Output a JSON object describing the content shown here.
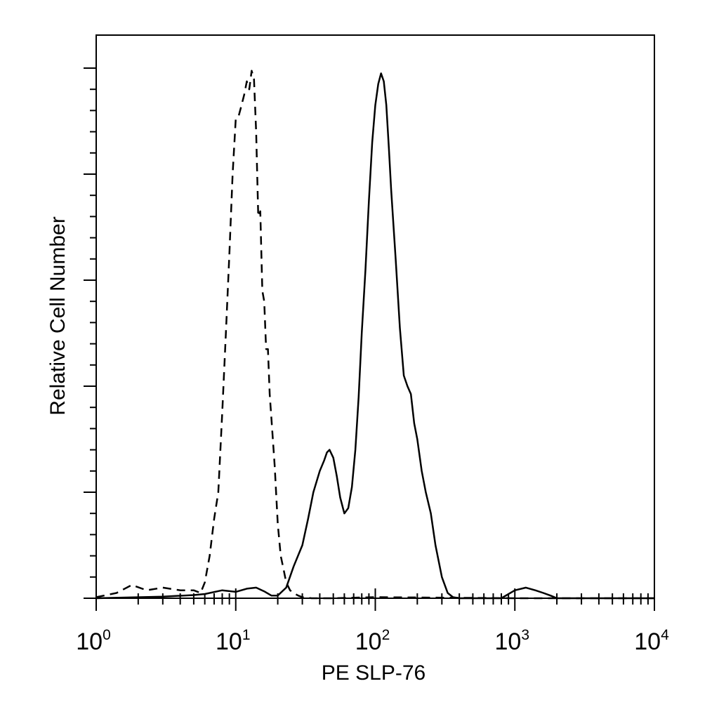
{
  "chart_data": {
    "type": "line",
    "title": "",
    "xlabel": "PE SLP-76",
    "ylabel": "Relative Cell Number",
    "x_scale": "log",
    "xlim": [
      1,
      10000
    ],
    "ylim": [
      0,
      100
    ],
    "x_tick_labels": [
      {
        "base": "10",
        "exp": "0"
      },
      {
        "base": "10",
        "exp": "1"
      },
      {
        "base": "10",
        "exp": "2"
      },
      {
        "base": "10",
        "exp": "3"
      },
      {
        "base": "10",
        "exp": "4"
      }
    ],
    "y_major_ticks": [
      0,
      20,
      40,
      60,
      80,
      100
    ],
    "grid": false,
    "legend": "none",
    "series": [
      {
        "style": "dashed",
        "color": "#000000",
        "x": [
          1.0,
          1.4,
          1.8,
          2.3,
          3.0,
          4.0,
          5.0,
          5.6,
          6.0,
          6.5,
          7.0,
          7.5,
          8.0,
          8.5,
          9.0,
          9.5,
          10.0,
          10.5,
          11.0,
          11.5,
          12.0,
          12.5,
          13.0,
          13.5,
          14.0,
          14.5,
          15.0,
          15.5,
          16.0,
          16.5,
          17.0,
          17.5,
          18.0,
          19.0,
          20.0,
          21.0,
          22.0,
          23.0,
          24.5,
          26.0,
          28.0,
          30.0,
          35.0,
          50.0,
          100.0,
          300.0,
          1000.0,
          10000.0
        ],
        "y": [
          0.2,
          1.0,
          2.5,
          1.5,
          2.0,
          1.5,
          1.5,
          1.0,
          3.0,
          8.0,
          15.0,
          20.0,
          35.0,
          50.0,
          65.0,
          80.0,
          90.5,
          91.0,
          93.0,
          95.0,
          97.5,
          96.0,
          99.5,
          98.0,
          88.0,
          72.0,
          73.0,
          58.0,
          56.0,
          47.0,
          47.0,
          38.5,
          34.0,
          25.0,
          14.0,
          8.0,
          5.5,
          3.0,
          1.5,
          1.0,
          0.5,
          0.2,
          0.0,
          0.0,
          0.2,
          0.1,
          0.0,
          0.0
        ]
      },
      {
        "style": "solid",
        "color": "#000000",
        "x": [
          1.0,
          3.0,
          5.0,
          6.0,
          8.0,
          10.0,
          12.0,
          14.0,
          16.0,
          18.0,
          20.0,
          23.0,
          26.0,
          30.0,
          33.0,
          36.0,
          40.0,
          43.0,
          45.0,
          47.0,
          50.0,
          53.0,
          56.0,
          60.0,
          64.0,
          68.0,
          72.0,
          76.0,
          80.0,
          85.0,
          90.0,
          95.0,
          100.0,
          105.0,
          110.0,
          115.0,
          120.0,
          125.0,
          130.0,
          140.0,
          150.0,
          160.0,
          170.0,
          180.0,
          190.0,
          200.0,
          215.0,
          230.0,
          250.0,
          270.0,
          300.0,
          330.0,
          360.0,
          400.0,
          500.0,
          800.0,
          1000.0,
          1200.0,
          1400.0,
          1600.0,
          1800.0,
          2000.0,
          10000.0
        ],
        "y": [
          0.0,
          0.3,
          0.6,
          0.8,
          1.5,
          1.2,
          1.8,
          2.0,
          1.3,
          0.5,
          0.5,
          2.0,
          6.0,
          10.0,
          15.0,
          20.0,
          24.0,
          26.0,
          27.5,
          28.0,
          26.5,
          23.0,
          19.0,
          16.0,
          17.0,
          21.0,
          28.0,
          38.0,
          50.0,
          62.0,
          75.0,
          86.0,
          93.0,
          97.0,
          99.0,
          97.5,
          93.0,
          85.0,
          77.0,
          64.0,
          51.0,
          42.0,
          40.0,
          38.5,
          33.0,
          30.0,
          24.0,
          20.0,
          16.0,
          10.0,
          4.0,
          1.0,
          0.2,
          0.0,
          0.0,
          0.0,
          1.5,
          2.0,
          1.5,
          1.0,
          0.5,
          0.0,
          0.0
        ]
      }
    ]
  }
}
